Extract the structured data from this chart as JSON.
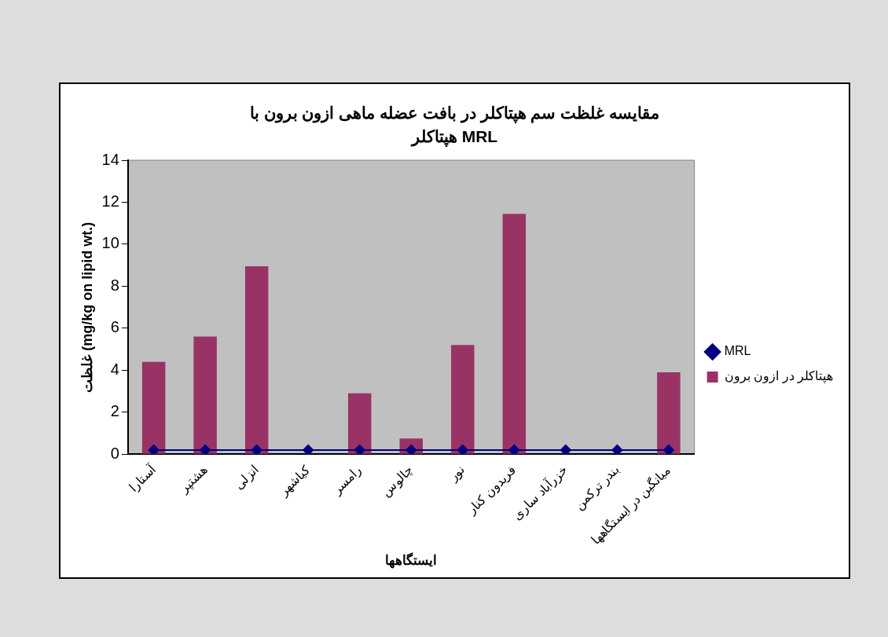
{
  "chart_data": {
    "type": "bar",
    "title": "مقایسه غلظت سم هپتاکلر در بافت عضله ماهی ازون برون با MRL هپتاکلر",
    "xlabel": "ایستگاهها",
    "ylabel": "غلظت (mg/kg on lipid wt.)",
    "categories": [
      "آستارا",
      "هشتپر",
      "انزلی",
      "کیاشهر",
      "رامسر",
      "چالوس",
      "نور",
      "فریدون کنار",
      "خزرآباد ساری",
      "بندر ترکمن",
      "میانگین در ایستگاهها"
    ],
    "series": [
      {
        "name": "هپتاکلر در ازون برون",
        "color": "#993366",
        "values": [
          4.4,
          5.6,
          8.95,
          null,
          2.9,
          0.75,
          5.2,
          11.45,
          null,
          null,
          3.9
        ]
      },
      {
        "name": "MRL",
        "type": "line",
        "color": "#000080",
        "marker": "diamond",
        "values": [
          0.2,
          0.2,
          0.2,
          0.2,
          0.2,
          0.2,
          0.2,
          0.2,
          0.2,
          0.2,
          0.2
        ]
      }
    ],
    "ylim": [
      0,
      14
    ],
    "yticks": [
      0,
      2,
      4,
      6,
      8,
      10,
      12,
      14
    ],
    "grid": false,
    "legend": "right"
  }
}
